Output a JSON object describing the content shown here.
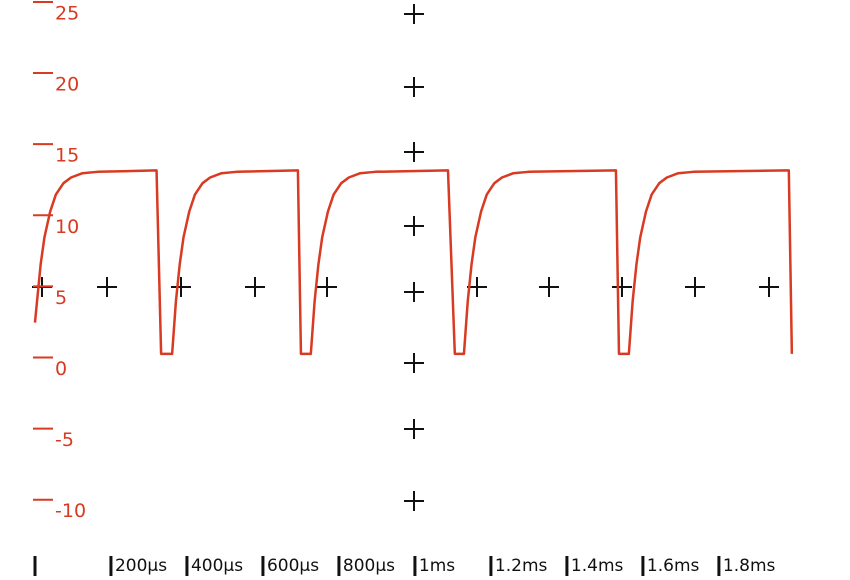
{
  "chart_data": {
    "type": "line",
    "x": [
      0,
      15,
      25,
      40,
      55,
      75,
      95,
      125,
      165,
      320,
      332,
      361,
      371,
      381,
      391,
      406,
      421,
      441,
      461,
      491,
      531,
      692,
      700,
      726,
      736,
      746,
      756,
      771,
      786,
      806,
      826,
      856,
      896,
      1087,
      1105,
      1129,
      1139,
      1149,
      1159,
      1174,
      1189,
      1209,
      1229,
      1259,
      1299,
      1529,
      1537,
      1563,
      1573,
      1583,
      1593,
      1608,
      1623,
      1643,
      1663,
      1693,
      1733,
      1984,
      1992
    ],
    "series": [
      {
        "color": "#d83a22",
        "values": [
          3.3,
          7.4,
          9.3,
          11.1,
          12.3,
          13.1,
          13.5,
          13.8,
          13.9,
          14,
          1.1,
          1.1,
          4.8,
          7.4,
          9.3,
          11.1,
          12.3,
          13.1,
          13.5,
          13.8,
          13.9,
          14,
          1.1,
          1.1,
          4.8,
          7.4,
          9.3,
          11.1,
          12.3,
          13.1,
          13.5,
          13.8,
          13.9,
          14,
          1.1,
          1.1,
          4.8,
          7.4,
          9.3,
          11.1,
          12.3,
          13.1,
          13.5,
          13.8,
          13.9,
          14,
          1.1,
          1.1,
          4.8,
          7.4,
          9.3,
          11.1,
          12.3,
          13.1,
          13.5,
          13.8,
          13.9,
          14,
          1.1
        ]
      }
    ],
    "xlim": [
      -92,
      2145
    ],
    "xticks": [
      {
        "value": 200,
        "label": "200µs"
      },
      {
        "value": 400,
        "label": "400µs"
      },
      {
        "value": 600,
        "label": "600µs"
      },
      {
        "value": 800,
        "label": "800µs"
      },
      {
        "value": 1000,
        "label": "1ms"
      },
      {
        "value": 1200,
        "label": "1.2ms"
      },
      {
        "value": 1400,
        "label": "1.4ms"
      },
      {
        "value": 1600,
        "label": "1.6ms"
      },
      {
        "value": 1800,
        "label": "1.8ms"
      }
    ],
    "ylim": [
      -14.8,
      25.98
    ],
    "yticks": [
      -10,
      -5,
      0,
      5,
      10,
      15,
      20,
      25
    ],
    "tick_color": "#d83a22"
  }
}
